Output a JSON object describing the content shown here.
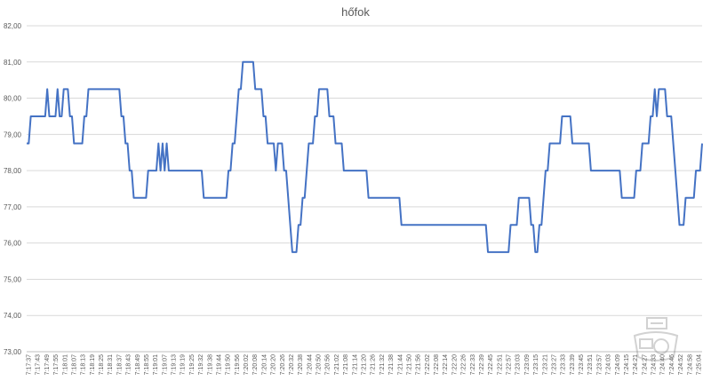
{
  "chart_data": {
    "type": "line",
    "title": "hőfok",
    "xlabel": "",
    "ylabel": "",
    "ylim": [
      73,
      82
    ],
    "yticks": [
      "73,00",
      "74,00",
      "75,00",
      "76,00",
      "77,00",
      "78,00",
      "79,00",
      "80,00",
      "81,00",
      "82,00"
    ],
    "grid": true,
    "legend": "none",
    "series_color": "#4472c4",
    "xticks": [
      "7:17:37",
      "7:17:43",
      "7:17:49",
      "7:17:55",
      "7:18:01",
      "7:18:07",
      "7:18:13",
      "7:18:19",
      "7:18:25",
      "7:18:31",
      "7:18:37",
      "7:18:43",
      "7:18:49",
      "7:18:55",
      "7:19:01",
      "7:19:07",
      "7:19:13",
      "7:19:19",
      "7:19:25",
      "7:19:32",
      "7:19:38",
      "7:19:44",
      "7:19:50",
      "7:19:56",
      "7:20:02",
      "7:20:08",
      "7:20:14",
      "7:20:20",
      "7:20:26",
      "7:20:32",
      "7:20:38",
      "7:20:44",
      "7:20:50",
      "7:20:56",
      "7:21:02",
      "7:21:08",
      "7:21:14",
      "7:21:20",
      "7:21:26",
      "7:21:32",
      "7:21:38",
      "7:21:44",
      "7:21:50",
      "7:21:56",
      "7:22:02",
      "7:22:08",
      "7:22:14",
      "7:22:20",
      "7:22:26",
      "7:22:33",
      "7:22:39",
      "7:22:45",
      "7:22:51",
      "7:22:57",
      "7:23:03",
      "7:23:09",
      "7:23:15",
      "7:23:21",
      "7:23:27",
      "7:23:33",
      "7:23:39",
      "7:23:45",
      "7:23:51",
      "7:23:57",
      "7:24:03",
      "7:24:09",
      "7:24:15",
      "7:24:21",
      "7:24:27",
      "7:24:33",
      "7:24:40",
      "7:24:46",
      "7:24:52",
      "7:24:58",
      "7:25:04"
    ],
    "series": [
      {
        "values": [
          78.75,
          78.75,
          79.5,
          79.5,
          79.5,
          79.5,
          79.5,
          79.5,
          79.5,
          79.5,
          80.25,
          79.5,
          79.5,
          79.5,
          79.5,
          80.25,
          79.5,
          79.5,
          80.25,
          80.25,
          80.25,
          79.5,
          79.5,
          78.75,
          78.75,
          78.75,
          78.75,
          78.75,
          79.5,
          79.5,
          80.25,
          80.25,
          80.25,
          80.25,
          80.25,
          80.25,
          80.25,
          80.25,
          80.25,
          80.25,
          80.25,
          80.25,
          80.25,
          80.25,
          80.25,
          80.25,
          79.5,
          79.5,
          78.75,
          78.75,
          78,
          78,
          77.25,
          77.25,
          77.25,
          77.25,
          77.25,
          77.25,
          77.25,
          78,
          78,
          78,
          78,
          78,
          78.75,
          78,
          78.75,
          78,
          78.75,
          78,
          78,
          78,
          78,
          78,
          78,
          78,
          78,
          78,
          78,
          78,
          78,
          78,
          78,
          78,
          78,
          78,
          77.25,
          77.25,
          77.25,
          77.25,
          77.25,
          77.25,
          77.25,
          77.25,
          77.25,
          77.25,
          77.25,
          77.25,
          78,
          78,
          78.75,
          78.75,
          79.5,
          80.25,
          80.25,
          81,
          81,
          81,
          81,
          81,
          81,
          80.25,
          80.25,
          80.25,
          80.25,
          79.5,
          79.5,
          78.75,
          78.75,
          78.75,
          78.75,
          78,
          78.75,
          78.75,
          78.75,
          78,
          78,
          77.25,
          76.5,
          75.75,
          75.75,
          75.75,
          76.5,
          76.5,
          77.25,
          77.25,
          78,
          78.75,
          78.75,
          78.75,
          79.5,
          79.5,
          80.25,
          80.25,
          80.25,
          80.25,
          80.25,
          79.5,
          79.5,
          79.5,
          78.75,
          78.75,
          78.75,
          78.75,
          78,
          78,
          78,
          78,
          78,
          78,
          78,
          78,
          78,
          78,
          78,
          78,
          77.25,
          77.25,
          77.25,
          77.25,
          77.25,
          77.25,
          77.25,
          77.25,
          77.25,
          77.25,
          77.25,
          77.25,
          77.25,
          77.25,
          77.25,
          77.25,
          76.5,
          76.5,
          76.5,
          76.5,
          76.5,
          76.5,
          76.5,
          76.5,
          76.5,
          76.5,
          76.5,
          76.5,
          76.5,
          76.5,
          76.5,
          76.5,
          76.5,
          76.5,
          76.5,
          76.5,
          76.5,
          76.5,
          76.5,
          76.5,
          76.5,
          76.5,
          76.5,
          76.5,
          76.5,
          76.5,
          76.5,
          76.5,
          76.5,
          76.5,
          76.5,
          76.5,
          76.5,
          76.5,
          76.5,
          76.5,
          76.5,
          76.5,
          75.75,
          75.75,
          75.75,
          75.75,
          75.75,
          75.75,
          75.75,
          75.75,
          75.75,
          75.75,
          75.75,
          76.5,
          76.5,
          76.5,
          76.5,
          77.25,
          77.25,
          77.25,
          77.25,
          77.25,
          77.25,
          76.5,
          76.5,
          75.75,
          75.75,
          76.5,
          76.5,
          77.25,
          78,
          78,
          78.75,
          78.75,
          78.75,
          78.75,
          78.75,
          78.75,
          79.5,
          79.5,
          79.5,
          79.5,
          79.5,
          78.75,
          78.75,
          78.75,
          78.75,
          78.75,
          78.75,
          78.75,
          78.75,
          78.75,
          78,
          78,
          78,
          78,
          78,
          78,
          78,
          78,
          78,
          78,
          78,
          78,
          78,
          78,
          78,
          77.25,
          77.25,
          77.25,
          77.25,
          77.25,
          77.25,
          77.25,
          78,
          78,
          78,
          78.75,
          78.75,
          78.75,
          78.75,
          79.5,
          79.5,
          80.25,
          79.5,
          80.25,
          80.25,
          80.25,
          80.25,
          79.5,
          79.5,
          79.5,
          78.75,
          78,
          77.25,
          76.5,
          76.5,
          76.5,
          77.25,
          77.25,
          77.25,
          77.25,
          77.25,
          78,
          78,
          78,
          78.75
        ]
      }
    ]
  }
}
